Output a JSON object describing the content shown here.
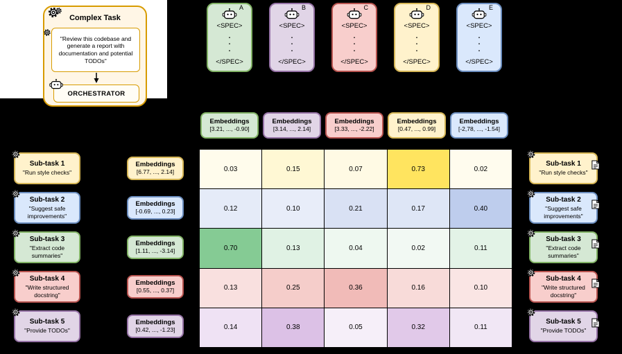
{
  "canvas": {
    "background": "#000000",
    "backdrop": "#ffffff"
  },
  "icons": {
    "gear": "gear-icon",
    "robot": "robot-head-icon",
    "document": "document-icon",
    "arrow": "down-arrow-icon"
  },
  "complex_task": {
    "title": "Complex Task",
    "description": "\"Review this codebase and generate a report with documentation and potential TODOs\"",
    "orchestrator": "ORCHESTRATOR",
    "fill": "#FFF6E6",
    "border": "#D79B00"
  },
  "agents": [
    {
      "letter": "A",
      "spec_open": "<SPEC>",
      "dots": [
        ".",
        ".",
        "."
      ],
      "spec_close": "</SPEC>",
      "fill": "#D5E8D4",
      "border": "#82B366"
    },
    {
      "letter": "B",
      "spec_open": "<SPEC>",
      "dots": [
        ".",
        ".",
        "."
      ],
      "spec_close": "</SPEC>",
      "fill": "#E1D5E7",
      "border": "#9673A6"
    },
    {
      "letter": "C",
      "spec_open": "<SPEC>",
      "dots": [
        ".",
        ".",
        "."
      ],
      "spec_close": "</SPEC>",
      "fill": "#F8CECC",
      "border": "#B85450"
    },
    {
      "letter": "D",
      "spec_open": "<SPEC>",
      "dots": [
        ".",
        ".",
        "."
      ],
      "spec_close": "</SPEC>",
      "fill": "#FFF2CC",
      "border": "#D6B656"
    },
    {
      "letter": "E",
      "spec_open": "<SPEC>",
      "dots": [
        ".",
        ".",
        "."
      ],
      "spec_close": "</SPEC>",
      "fill": "#DAE8FC",
      "border": "#6C8EBF"
    }
  ],
  "column_embeddings": [
    {
      "label": "Embeddings",
      "vector": "[3.21, ..., -0.90]",
      "fill": "#D5E8D4",
      "border": "#82B366"
    },
    {
      "label": "Embeddings",
      "vector": "[3.14, ..., 2.14]",
      "fill": "#E1D5E7",
      "border": "#9673A6"
    },
    {
      "label": "Embeddings",
      "vector": "[3.33, ..., -2.22]",
      "fill": "#F8CECC",
      "border": "#B85450"
    },
    {
      "label": "Embeddings",
      "vector": "[0.47, ..., 0.99]",
      "fill": "#FFF2CC",
      "border": "#D6B656"
    },
    {
      "label": "Embeddings",
      "vector": "[-2,78, ..., -1.54]",
      "fill": "#DAE8FC",
      "border": "#6C8EBF"
    }
  ],
  "row_embeddings": [
    {
      "label": "Embeddings",
      "vector": "[6.77, ..., 2.14]",
      "fill": "#FFF2CC",
      "border": "#D6B656"
    },
    {
      "label": "Embeddings",
      "vector": "[-0.69, ..., 0.23]",
      "fill": "#DAE8FC",
      "border": "#6C8EBF"
    },
    {
      "label": "Embeddings",
      "vector": "[1.11, ..., -3.14]",
      "fill": "#D5E8D4",
      "border": "#82B366"
    },
    {
      "label": "Embeddings",
      "vector": "[0.55, ..., 0.37]",
      "fill": "#F8CECC",
      "border": "#B85450"
    },
    {
      "label": "Embeddings",
      "vector": "[0.42, ..., -1.23]",
      "fill": "#E1D5E7",
      "border": "#9673A6"
    }
  ],
  "subtasks": [
    {
      "title": "Sub-task 1",
      "description": "\"Run style checks\"",
      "fill": "#FFF2CC",
      "border": "#D6B656",
      "strong": "#FFE45E"
    },
    {
      "title": "Sub-task 2",
      "description": "\"Suggest safe improvements\"",
      "fill": "#DAE8FC",
      "border": "#6C8EBF",
      "strong": "#8FA8E0"
    },
    {
      "title": "Sub-task 3",
      "description": "\"Extract code summaries\"",
      "fill": "#D5E8D4",
      "border": "#82B366",
      "strong": "#7FC98F"
    },
    {
      "title": "Sub-task 4",
      "description": "\"Write structured docstring\"",
      "fill": "#F8CECC",
      "border": "#B85450",
      "strong": "#E57F79"
    },
    {
      "title": "Sub-task 5",
      "description": "\"Provide TODOs\"",
      "fill": "#E1D5E7",
      "border": "#9673A6",
      "strong": "#C08FD2"
    }
  ],
  "matrix": {
    "type": "heatmap",
    "rows": [
      "Sub-task 1",
      "Sub-task 2",
      "Sub-task 3",
      "Sub-task 4",
      "Sub-task 5"
    ],
    "columns": [
      "Agent A",
      "Agent B",
      "Agent C",
      "Agent D",
      "Agent E"
    ],
    "values": [
      [
        0.03,
        0.15,
        0.07,
        0.73,
        0.02
      ],
      [
        0.12,
        0.1,
        0.21,
        0.17,
        0.4
      ],
      [
        0.7,
        0.13,
        0.04,
        0.02,
        0.11
      ],
      [
        0.13,
        0.25,
        0.36,
        0.16,
        0.1
      ],
      [
        0.14,
        0.38,
        0.05,
        0.32,
        0.11
      ]
    ]
  }
}
